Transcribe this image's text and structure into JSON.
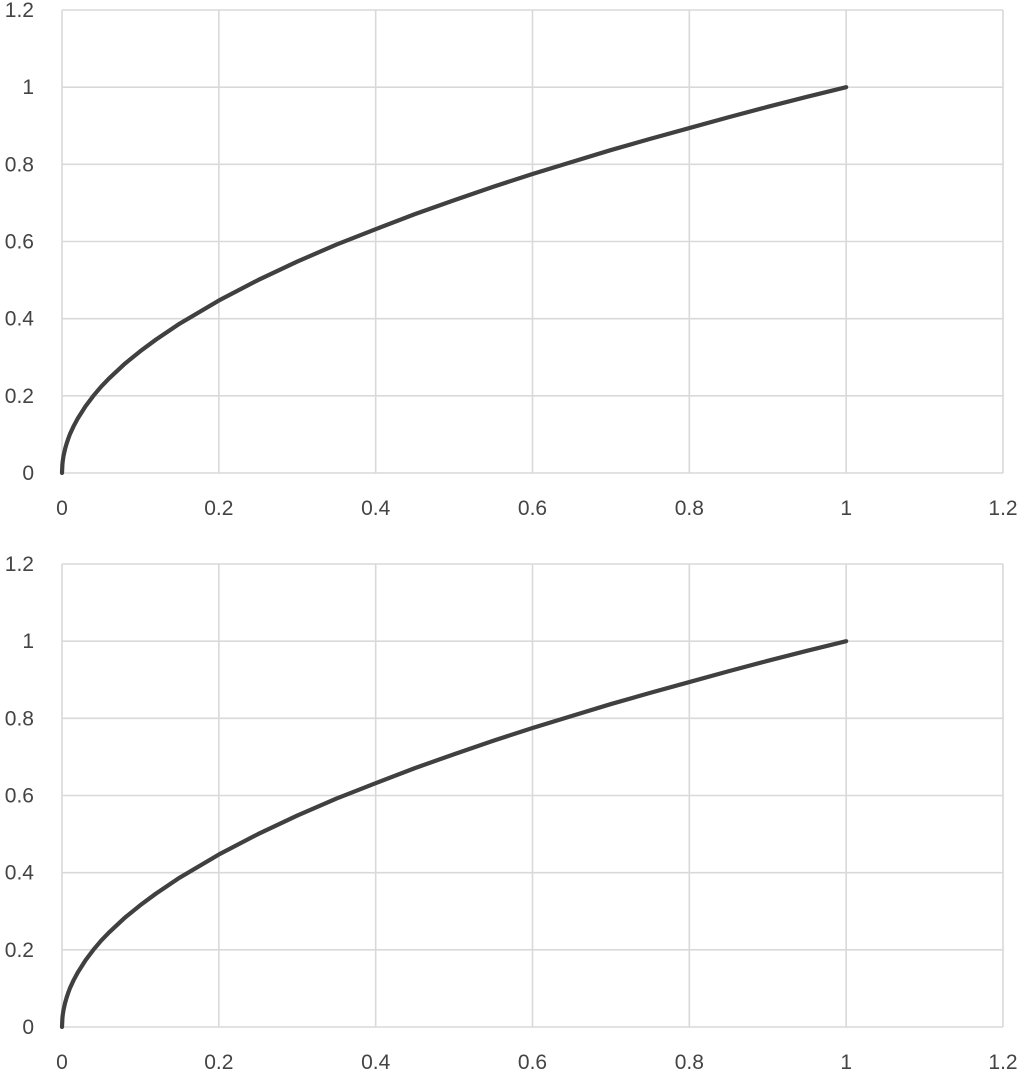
{
  "chart_data": [
    {
      "type": "line",
      "title": "",
      "xlabel": "",
      "ylabel": "",
      "xlim": [
        0,
        1.2
      ],
      "ylim": [
        0,
        1.2
      ],
      "x_ticks": [
        0,
        0.2,
        0.4,
        0.6,
        0.8,
        1,
        1.2
      ],
      "y_ticks": [
        0,
        0.2,
        0.4,
        0.6,
        0.8,
        1,
        1.2
      ],
      "x_tick_labels": [
        "0",
        "0.2",
        "0.4",
        "0.6",
        "0.8",
        "1",
        "1.2"
      ],
      "y_tick_labels": [
        "0",
        "0.2",
        "0.4",
        "0.6",
        "0.8",
        "1",
        "1.2"
      ],
      "grid": true,
      "legend": "none",
      "series_color": "#404040",
      "grid_color": "#d9d9d9",
      "series": [
        {
          "x": [
            0,
            0.0005,
            0.001,
            0.002,
            0.004,
            0.006,
            0.008,
            0.01,
            0.015,
            0.02,
            0.03,
            0.04,
            0.05,
            0.06,
            0.08,
            0.1,
            0.12,
            0.15,
            0.2,
            0.25,
            0.3,
            0.35,
            0.4,
            0.45,
            0.5,
            0.55,
            0.6,
            0.65,
            0.7,
            0.75,
            0.8,
            0.85,
            0.9,
            0.95,
            1
          ],
          "y": [
            0,
            0.022,
            0.032,
            0.045,
            0.063,
            0.077,
            0.089,
            0.1,
            0.122,
            0.141,
            0.173,
            0.2,
            0.224,
            0.245,
            0.283,
            0.316,
            0.346,
            0.387,
            0.447,
            0.5,
            0.548,
            0.592,
            0.632,
            0.671,
            0.707,
            0.742,
            0.775,
            0.806,
            0.837,
            0.866,
            0.894,
            0.922,
            0.949,
            0.975,
            1
          ]
        }
      ]
    },
    {
      "type": "line",
      "title": "",
      "xlabel": "",
      "ylabel": "",
      "xlim": [
        0,
        1.2
      ],
      "ylim": [
        0,
        1.2
      ],
      "x_ticks": [
        0,
        0.2,
        0.4,
        0.6,
        0.8,
        1,
        1.2
      ],
      "y_ticks": [
        0,
        0.2,
        0.4,
        0.6,
        0.8,
        1,
        1.2
      ],
      "x_tick_labels": [
        "0",
        "0.2",
        "0.4",
        "0.6",
        "0.8",
        "1",
        "1.2"
      ],
      "y_tick_labels": [
        "0",
        "0.2",
        "0.4",
        "0.6",
        "0.8",
        "1",
        "1.2"
      ],
      "grid": true,
      "legend": "none",
      "series_color": "#404040",
      "grid_color": "#d9d9d9",
      "series": [
        {
          "x": [
            0,
            0.0005,
            0.001,
            0.002,
            0.004,
            0.006,
            0.008,
            0.01,
            0.015,
            0.02,
            0.03,
            0.04,
            0.05,
            0.06,
            0.08,
            0.1,
            0.12,
            0.15,
            0.2,
            0.25,
            0.3,
            0.35,
            0.4,
            0.45,
            0.5,
            0.55,
            0.6,
            0.65,
            0.7,
            0.75,
            0.8,
            0.85,
            0.9,
            0.95,
            1
          ],
          "y": [
            0,
            0.022,
            0.032,
            0.045,
            0.063,
            0.077,
            0.089,
            0.1,
            0.122,
            0.141,
            0.173,
            0.2,
            0.224,
            0.245,
            0.283,
            0.316,
            0.346,
            0.387,
            0.447,
            0.5,
            0.548,
            0.592,
            0.632,
            0.671,
            0.707,
            0.742,
            0.775,
            0.806,
            0.837,
            0.866,
            0.894,
            0.922,
            0.949,
            0.975,
            1
          ]
        }
      ]
    }
  ]
}
